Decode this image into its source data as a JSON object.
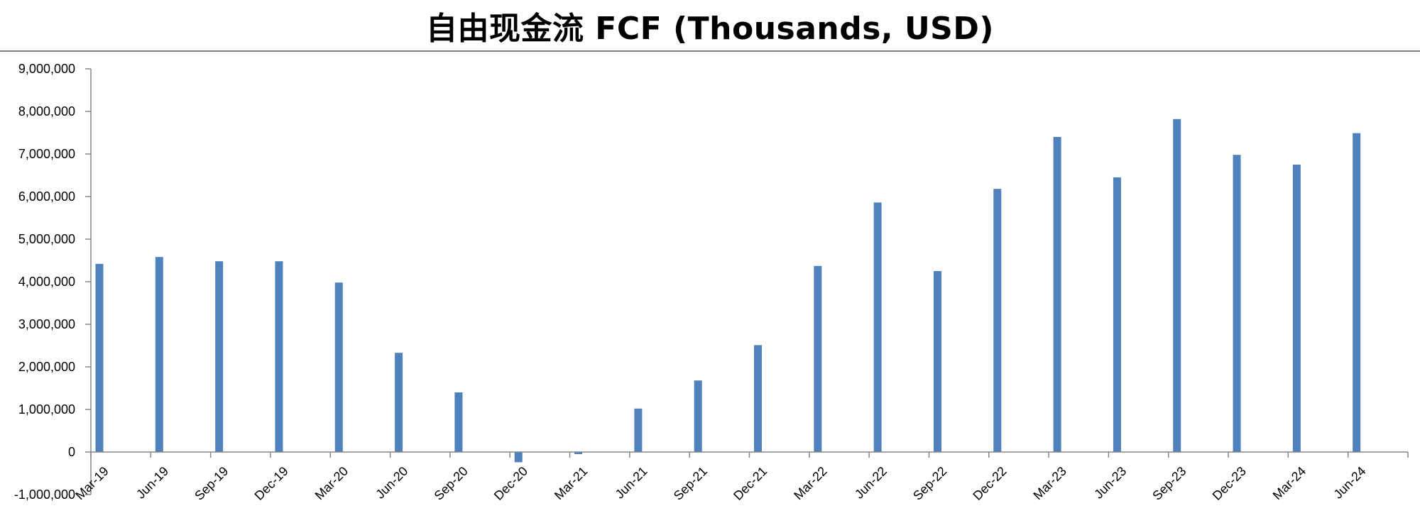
{
  "chart_data": {
    "type": "bar",
    "title": "自由现金流 FCF (Thousands, USD)",
    "xlabel": "",
    "ylabel": "",
    "categories": [
      "Mar-19",
      "Jun-19",
      "Sep-19",
      "Dec-19",
      "Mar-20",
      "Jun-20",
      "Sep-20",
      "Dec-20",
      "Mar-21",
      "Jun-21",
      "Sep-21",
      "Dec-21",
      "Mar-22",
      "Jun-22",
      "Sep-22",
      "Dec-22",
      "Mar-23",
      "Jun-23",
      "Sep-23",
      "Dec-23",
      "Mar-24",
      "Jun-24"
    ],
    "values": [
      4420000,
      4580000,
      4480000,
      4480000,
      3980000,
      2330000,
      1400000,
      -240000,
      -50000,
      1020000,
      1680000,
      2510000,
      4370000,
      5860000,
      4250000,
      6180000,
      7400000,
      6450000,
      7820000,
      6980000,
      6750000,
      7490000
    ],
    "ylim": [
      -1000000,
      9000000
    ],
    "ytick_step": 1000000,
    "y_tick_labels": [
      "-1,000,000",
      "0",
      "1,000,000",
      "2,000,000",
      "3,000,000",
      "4,000,000",
      "5,000,000",
      "6,000,000",
      "7,000,000",
      "8,000,000",
      "9,000,000"
    ],
    "grid": false,
    "legend": "none",
    "bar_color": "#4F81BD",
    "axis_color": "#868686"
  }
}
